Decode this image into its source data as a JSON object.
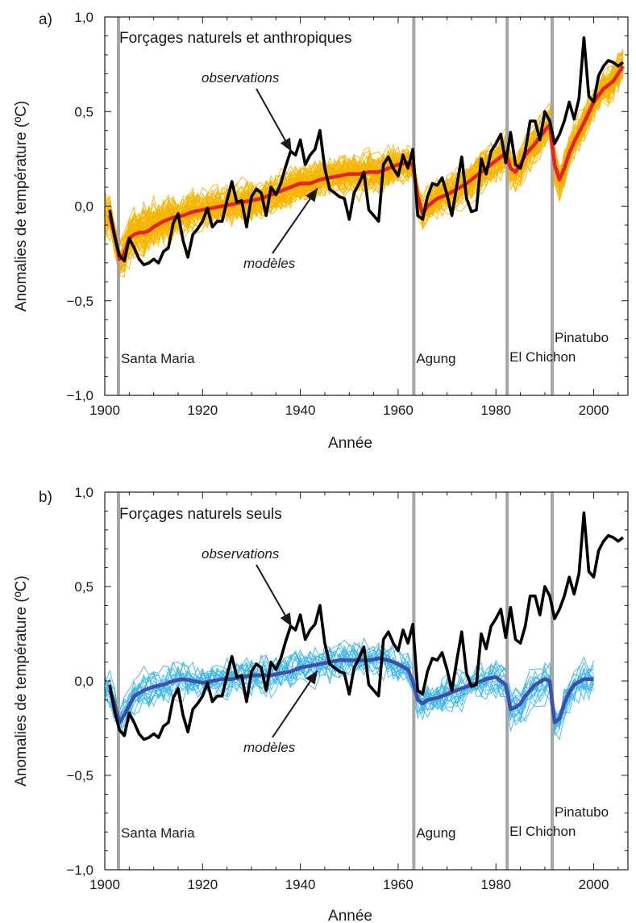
{
  "chart_data": [
    {
      "type": "line",
      "panel_label": "a)",
      "title": "Forçages naturels et anthropiques",
      "xlabel": "Année",
      "ylabel": "Anomalies de température (ºC)",
      "xlim": [
        1900,
        2007
      ],
      "ylim": [
        -1.0,
        1.0
      ],
      "x_ticks": [
        1900,
        1920,
        1940,
        1960,
        1980,
        2000
      ],
      "y_ticks": [
        -1.0,
        -0.5,
        0.0,
        0.5,
        1.0
      ],
      "y_tick_labels": [
        "−1,0",
        "−0,5",
        "0,0",
        "0,5",
        "1,0"
      ],
      "events": [
        {
          "name": "Santa Maria",
          "year": 1902.8
        },
        {
          "name": "Agung",
          "year": 1963.2
        },
        {
          "name": "El Chichon",
          "year": 1982.3
        },
        {
          "name": "Pinatubo",
          "year": 1991.5
        }
      ],
      "annotations": {
        "observations": "observations",
        "models": "modèles"
      },
      "colors": {
        "ensemble": "#f7b500",
        "model_mean": "#e8202a",
        "observations": "#000000",
        "events": "#a6a6a6"
      },
      "series": [
        {
          "name": "observations",
          "x": [
            1901,
            1902,
            1903,
            1904,
            1905,
            1906,
            1907,
            1908,
            1909,
            1910,
            1911,
            1912,
            1913,
            1914,
            1915,
            1916,
            1917,
            1918,
            1919,
            1920,
            1921,
            1922,
            1923,
            1924,
            1925,
            1926,
            1927,
            1928,
            1929,
            1930,
            1931,
            1932,
            1933,
            1934,
            1935,
            1936,
            1937,
            1938,
            1939,
            1940,
            1941,
            1942,
            1943,
            1944,
            1945,
            1946,
            1947,
            1948,
            1949,
            1950,
            1951,
            1952,
            1953,
            1954,
            1955,
            1956,
            1957,
            1958,
            1959,
            1960,
            1961,
            1962,
            1963,
            1964,
            1965,
            1966,
            1967,
            1968,
            1969,
            1970,
            1971,
            1972,
            1973,
            1974,
            1975,
            1976,
            1977,
            1978,
            1979,
            1980,
            1981,
            1982,
            1983,
            1984,
            1985,
            1986,
            1987,
            1988,
            1989,
            1990,
            1991,
            1992,
            1993,
            1994,
            1995,
            1996,
            1997,
            1998,
            1999,
            2000,
            2001,
            2002,
            2003,
            2004,
            2005,
            2006
          ],
          "y": [
            -0.02,
            -0.16,
            -0.26,
            -0.29,
            -0.17,
            -0.22,
            -0.28,
            -0.31,
            -0.3,
            -0.28,
            -0.3,
            -0.24,
            -0.22,
            -0.09,
            -0.04,
            -0.18,
            -0.27,
            -0.15,
            -0.12,
            -0.08,
            -0.01,
            -0.11,
            -0.08,
            -0.08,
            0.03,
            0.13,
            0.02,
            0.03,
            -0.11,
            0.05,
            0.09,
            0.07,
            -0.05,
            0.1,
            0.06,
            0.12,
            0.21,
            0.29,
            0.27,
            0.35,
            0.22,
            0.27,
            0.3,
            0.4,
            0.2,
            0.09,
            0.07,
            0.05,
            0.04,
            -0.07,
            0.07,
            0.12,
            0.18,
            -0.02,
            -0.05,
            -0.08,
            0.22,
            0.26,
            0.2,
            0.16,
            0.27,
            0.2,
            0.3,
            -0.05,
            -0.07,
            0.05,
            0.12,
            0.11,
            0.15,
            0.06,
            -0.05,
            0.11,
            0.26,
            0.04,
            -0.03,
            -0.02,
            0.25,
            0.17,
            0.29,
            0.33,
            0.38,
            0.23,
            0.39,
            0.22,
            0.2,
            0.29,
            0.45,
            0.45,
            0.35,
            0.5,
            0.45,
            0.33,
            0.38,
            0.45,
            0.55,
            0.46,
            0.57,
            0.89,
            0.58,
            0.55,
            0.69,
            0.74,
            0.77,
            0.76,
            0.74,
            0.76
          ]
        },
        {
          "name": "modèles",
          "x": [
            1901,
            1902,
            1903,
            1904,
            1905,
            1906,
            1907,
            1908,
            1909,
            1910,
            1912,
            1914,
            1916,
            1918,
            1920,
            1922,
            1924,
            1926,
            1928,
            1930,
            1932,
            1934,
            1936,
            1938,
            1940,
            1942,
            1944,
            1946,
            1948,
            1950,
            1952,
            1954,
            1956,
            1958,
            1960,
            1962,
            1963,
            1964,
            1965,
            1966,
            1968,
            1970,
            1972,
            1974,
            1976,
            1978,
            1980,
            1982,
            1983,
            1984,
            1985,
            1986,
            1988,
            1990,
            1991,
            1992,
            1993,
            1994,
            1995,
            1996,
            1998,
            2000,
            2002,
            2004,
            2006
          ],
          "y": [
            -0.05,
            -0.15,
            -0.28,
            -0.25,
            -0.17,
            -0.15,
            -0.14,
            -0.14,
            -0.13,
            -0.11,
            -0.08,
            -0.06,
            -0.05,
            -0.03,
            -0.02,
            -0.01,
            0.0,
            0.01,
            0.02,
            0.03,
            0.04,
            0.06,
            0.08,
            0.1,
            0.12,
            0.12,
            0.14,
            0.15,
            0.16,
            0.17,
            0.17,
            0.18,
            0.18,
            0.2,
            0.22,
            0.23,
            0.22,
            0.05,
            -0.04,
            0.0,
            0.04,
            0.06,
            0.09,
            0.12,
            0.16,
            0.2,
            0.24,
            0.28,
            0.2,
            0.18,
            0.22,
            0.27,
            0.33,
            0.4,
            0.43,
            0.22,
            0.14,
            0.2,
            0.28,
            0.34,
            0.44,
            0.55,
            0.62,
            0.66,
            0.74
          ]
        }
      ]
    },
    {
      "type": "line",
      "panel_label": "b)",
      "title": "Forçages naturels seuls",
      "xlabel": "Année",
      "ylabel": "Anomalies de température (ºC)",
      "xlim": [
        1900,
        2007
      ],
      "ylim": [
        -1.0,
        1.0
      ],
      "x_ticks": [
        1900,
        1920,
        1940,
        1960,
        1980,
        2000
      ],
      "y_ticks": [
        -1.0,
        -0.5,
        0.0,
        0.5,
        1.0
      ],
      "y_tick_labels": [
        "−1,0",
        "−0,5",
        "0,0",
        "0,5",
        "1,0"
      ],
      "events": [
        {
          "name": "Santa Maria",
          "year": 1902.8
        },
        {
          "name": "Agung",
          "year": 1963.2
        },
        {
          "name": "El Chichon",
          "year": 1982.3
        },
        {
          "name": "Pinatubo",
          "year": 1991.5
        }
      ],
      "annotations": {
        "observations": "observations",
        "models": "modèles"
      },
      "colors": {
        "ensemble": "#3eb6e6",
        "model_mean": "#3d4fa8",
        "observations": "#000000",
        "events": "#a6a6a6"
      },
      "series": [
        {
          "name": "observations",
          "x": [
            1901,
            1902,
            1903,
            1904,
            1905,
            1906,
            1907,
            1908,
            1909,
            1910,
            1911,
            1912,
            1913,
            1914,
            1915,
            1916,
            1917,
            1918,
            1919,
            1920,
            1921,
            1922,
            1923,
            1924,
            1925,
            1926,
            1927,
            1928,
            1929,
            1930,
            1931,
            1932,
            1933,
            1934,
            1935,
            1936,
            1937,
            1938,
            1939,
            1940,
            1941,
            1942,
            1943,
            1944,
            1945,
            1946,
            1947,
            1948,
            1949,
            1950,
            1951,
            1952,
            1953,
            1954,
            1955,
            1956,
            1957,
            1958,
            1959,
            1960,
            1961,
            1962,
            1963,
            1964,
            1965,
            1966,
            1967,
            1968,
            1969,
            1970,
            1971,
            1972,
            1973,
            1974,
            1975,
            1976,
            1977,
            1978,
            1979,
            1980,
            1981,
            1982,
            1983,
            1984,
            1985,
            1986,
            1987,
            1988,
            1989,
            1990,
            1991,
            1992,
            1993,
            1994,
            1995,
            1996,
            1997,
            1998,
            1999,
            2000,
            2001,
            2002,
            2003,
            2004,
            2005,
            2006
          ],
          "y": [
            -0.02,
            -0.16,
            -0.26,
            -0.29,
            -0.17,
            -0.22,
            -0.28,
            -0.31,
            -0.3,
            -0.28,
            -0.3,
            -0.24,
            -0.22,
            -0.09,
            -0.04,
            -0.18,
            -0.27,
            -0.15,
            -0.12,
            -0.08,
            -0.01,
            -0.11,
            -0.08,
            -0.08,
            0.03,
            0.13,
            0.02,
            0.03,
            -0.11,
            0.05,
            0.09,
            0.07,
            -0.05,
            0.1,
            0.06,
            0.12,
            0.21,
            0.29,
            0.27,
            0.35,
            0.22,
            0.27,
            0.3,
            0.4,
            0.2,
            0.09,
            0.07,
            0.05,
            0.04,
            -0.07,
            0.07,
            0.12,
            0.18,
            -0.02,
            -0.05,
            -0.08,
            0.22,
            0.26,
            0.2,
            0.16,
            0.27,
            0.2,
            0.3,
            -0.05,
            -0.07,
            0.05,
            0.12,
            0.11,
            0.15,
            0.06,
            -0.05,
            0.11,
            0.26,
            0.04,
            -0.03,
            -0.02,
            0.25,
            0.17,
            0.29,
            0.33,
            0.38,
            0.23,
            0.39,
            0.22,
            0.2,
            0.29,
            0.45,
            0.45,
            0.35,
            0.5,
            0.45,
            0.33,
            0.38,
            0.45,
            0.55,
            0.46,
            0.57,
            0.89,
            0.58,
            0.55,
            0.69,
            0.74,
            0.77,
            0.76,
            0.74,
            0.76
          ]
        },
        {
          "name": "modèles",
          "x": [
            1901,
            1902,
            1903,
            1904,
            1906,
            1908,
            1910,
            1912,
            1914,
            1916,
            1918,
            1920,
            1922,
            1924,
            1926,
            1928,
            1930,
            1932,
            1934,
            1936,
            1938,
            1940,
            1942,
            1944,
            1946,
            1948,
            1950,
            1952,
            1954,
            1956,
            1958,
            1960,
            1962,
            1963,
            1964,
            1965,
            1966,
            1968,
            1970,
            1972,
            1974,
            1976,
            1978,
            1980,
            1982,
            1983,
            1984,
            1985,
            1986,
            1988,
            1990,
            1991,
            1992,
            1993,
            1994,
            1995,
            1996,
            1998,
            2000
          ],
          "y": [
            -0.05,
            -0.12,
            -0.22,
            -0.18,
            -0.08,
            -0.05,
            -0.03,
            -0.02,
            0.0,
            0.01,
            0.0,
            -0.01,
            0.0,
            0.01,
            0.01,
            0.02,
            0.03,
            0.03,
            0.03,
            0.04,
            0.05,
            0.07,
            0.08,
            0.09,
            0.1,
            0.11,
            0.11,
            0.11,
            0.11,
            0.12,
            0.11,
            0.09,
            0.06,
            0.0,
            -0.1,
            -0.12,
            -0.1,
            -0.09,
            -0.07,
            -0.05,
            -0.03,
            -0.01,
            0.01,
            0.02,
            -0.02,
            -0.15,
            -0.14,
            -0.12,
            -0.08,
            -0.02,
            0.01,
            0.0,
            -0.22,
            -0.2,
            -0.12,
            -0.06,
            -0.02,
            0.01,
            0.01
          ]
        }
      ]
    }
  ]
}
